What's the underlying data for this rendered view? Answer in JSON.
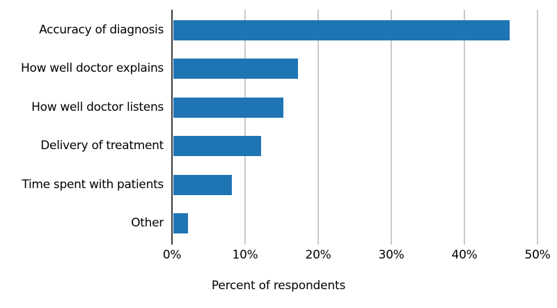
{
  "chart_data": {
    "type": "bar",
    "orientation": "horizontal",
    "title": "",
    "xlabel": "Percent of respondents",
    "ylabel": "",
    "categories": [
      "Accuracy of diagnosis",
      "How well doctor explains",
      "How well doctor listens",
      "Delivery of treatment",
      "Time spent with patients",
      "Other"
    ],
    "values": [
      46,
      17,
      15,
      12,
      8,
      2
    ],
    "x_tick_labels": [
      "0%",
      "10%",
      "20%",
      "30%",
      "40%",
      "50%"
    ],
    "x_tick_values": [
      0,
      10,
      20,
      30,
      40,
      50
    ],
    "xlim": [
      0,
      50
    ],
    "grid": "vertical",
    "legend": "none",
    "colors": {
      "bar": "#1f74b4",
      "gridline": "#c8c8c8",
      "axis_spine": "#383838",
      "text": "#000000",
      "background": "#ffffff"
    }
  }
}
